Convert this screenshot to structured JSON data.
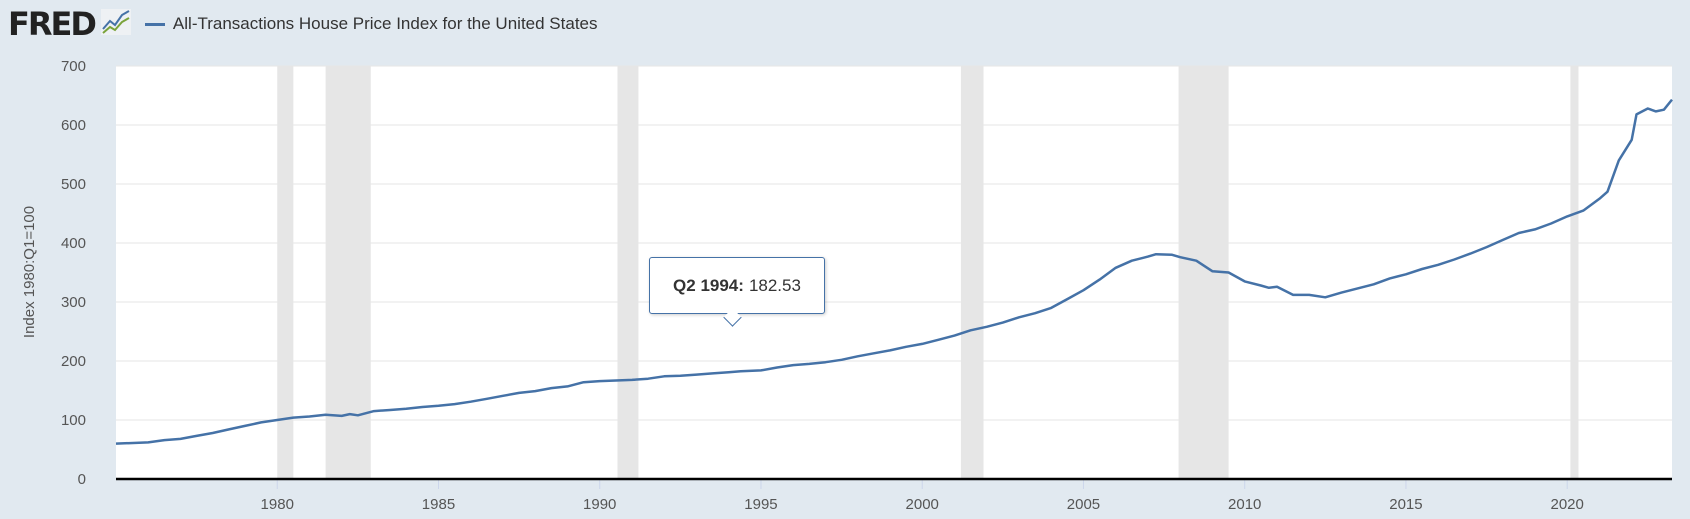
{
  "header": {
    "logo": "FRED",
    "logo_icon": "line-chart-icon",
    "series_title": "All-Transactions House Price Index for the United States"
  },
  "colors": {
    "line": "#4572a7",
    "recession": "#e6e6e6",
    "grid": "#e6e6e6",
    "background": "#e1e9f0"
  },
  "tooltip": {
    "label": "Q2 1994:",
    "value": "182.53"
  },
  "chart_data": {
    "type": "line",
    "title": "All-Transactions House Price Index for the United States",
    "xlabel": "",
    "ylabel": "Index 1980:Q1=100",
    "xlim": [
      1975.0,
      2023.25
    ],
    "ylim": [
      0,
      700
    ],
    "yticks": [
      0,
      100,
      200,
      300,
      400,
      500,
      600,
      700
    ],
    "xticks": [
      1980,
      1985,
      1990,
      1995,
      2000,
      2005,
      2010,
      2015,
      2020
    ],
    "grid": true,
    "legend": "top-left",
    "recessions": [
      [
        1980.0,
        1980.5
      ],
      [
        1981.5,
        1982.9
      ],
      [
        1990.55,
        1991.2
      ],
      [
        2001.2,
        2001.9
      ],
      [
        2007.95,
        2009.5
      ],
      [
        2020.1,
        2020.35
      ]
    ],
    "series": [
      {
        "name": "All-Transactions House Price Index for the United States",
        "points": [
          [
            1975.0,
            60
          ],
          [
            1976,
            62
          ],
          [
            1976.5,
            66
          ],
          [
            1977,
            68
          ],
          [
            1977.5,
            73
          ],
          [
            1978,
            78
          ],
          [
            1978.5,
            84
          ],
          [
            1979,
            90
          ],
          [
            1979.5,
            96
          ],
          [
            1980,
            100
          ],
          [
            1980.5,
            104
          ],
          [
            1981,
            106
          ],
          [
            1981.5,
            109
          ],
          [
            1982,
            107
          ],
          [
            1982.25,
            110
          ],
          [
            1982.5,
            108
          ],
          [
            1983,
            115
          ],
          [
            1983.5,
            117
          ],
          [
            1984,
            119
          ],
          [
            1984.5,
            122
          ],
          [
            1985,
            124
          ],
          [
            1985.5,
            127
          ],
          [
            1986,
            131
          ],
          [
            1986.5,
            136
          ],
          [
            1987,
            141
          ],
          [
            1987.5,
            146
          ],
          [
            1988,
            149
          ],
          [
            1988.5,
            154
          ],
          [
            1989,
            157
          ],
          [
            1989.5,
            164
          ],
          [
            1990,
            166
          ],
          [
            1990.5,
            167
          ],
          [
            1991,
            168
          ],
          [
            1991.5,
            170
          ],
          [
            1992,
            174
          ],
          [
            1992.5,
            175
          ],
          [
            1993,
            177
          ],
          [
            1993.5,
            179
          ],
          [
            1994,
            181
          ],
          [
            1994.375,
            182.53
          ],
          [
            1995,
            184
          ],
          [
            1995.5,
            189
          ],
          [
            1996,
            193
          ],
          [
            1996.5,
            195
          ],
          [
            1997,
            198
          ],
          [
            1997.5,
            202
          ],
          [
            1998,
            208
          ],
          [
            1998.5,
            213
          ],
          [
            1999,
            218
          ],
          [
            1999.5,
            224
          ],
          [
            2000,
            229
          ],
          [
            2000.5,
            236
          ],
          [
            2001,
            243
          ],
          [
            2001.5,
            252
          ],
          [
            2002,
            258
          ],
          [
            2002.5,
            265
          ],
          [
            2003,
            274
          ],
          [
            2003.5,
            281
          ],
          [
            2004,
            290
          ],
          [
            2004.5,
            305
          ],
          [
            2005,
            320
          ],
          [
            2005.5,
            338
          ],
          [
            2006,
            358
          ],
          [
            2006.5,
            370
          ],
          [
            2007,
            377
          ],
          [
            2007.25,
            381
          ],
          [
            2007.75,
            380
          ],
          [
            2008,
            376
          ],
          [
            2008.5,
            370
          ],
          [
            2009,
            352
          ],
          [
            2009.5,
            350
          ],
          [
            2010,
            335
          ],
          [
            2010.5,
            328
          ],
          [
            2010.75,
            324
          ],
          [
            2011,
            326
          ],
          [
            2011.5,
            312
          ],
          [
            2012,
            312
          ],
          [
            2012.5,
            308
          ],
          [
            2013,
            316
          ],
          [
            2013.5,
            323
          ],
          [
            2014,
            330
          ],
          [
            2014.5,
            340
          ],
          [
            2015,
            347
          ],
          [
            2015.5,
            356
          ],
          [
            2016,
            363
          ],
          [
            2016.5,
            372
          ],
          [
            2017,
            382
          ],
          [
            2017.5,
            393
          ],
          [
            2018,
            405
          ],
          [
            2018.5,
            417
          ],
          [
            2019,
            423
          ],
          [
            2019.5,
            433
          ],
          [
            2020,
            445
          ],
          [
            2020.5,
            455
          ],
          [
            2021,
            475
          ],
          [
            2021.25,
            487
          ],
          [
            2021.6,
            540
          ],
          [
            2022,
            575
          ],
          [
            2022.15,
            618
          ],
          [
            2022.5,
            628
          ],
          [
            2022.75,
            623
          ],
          [
            2023,
            626
          ],
          [
            2023.25,
            643
          ]
        ]
      }
    ]
  }
}
